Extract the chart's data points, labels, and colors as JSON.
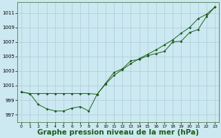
{
  "background_color": "#cce8f0",
  "grid_color": "#aaccd8",
  "line_color": "#1a5c1a",
  "xlabel": "Graphe pression niveau de la mer (hPa)",
  "xlabel_fontsize": 7.5,
  "ylabel_ticks": [
    997,
    999,
    1001,
    1003,
    1005,
    1007,
    1009,
    1011
  ],
  "xlim": [
    -0.5,
    23.5
  ],
  "ylim": [
    996.0,
    1012.5
  ],
  "xticks": [
    0,
    1,
    2,
    3,
    4,
    5,
    6,
    7,
    8,
    9,
    10,
    11,
    12,
    13,
    14,
    15,
    16,
    17,
    18,
    19,
    20,
    21,
    22,
    23
  ],
  "line1_x": [
    0,
    1,
    2,
    3,
    4,
    5,
    6,
    7,
    8,
    9,
    10,
    11,
    12,
    13,
    14,
    15,
    16,
    17,
    18,
    19,
    20,
    21,
    22,
    23
  ],
  "line1_y": [
    1000.1,
    999.9,
    998.4,
    997.8,
    997.5,
    997.5,
    997.9,
    998.1,
    997.5,
    999.8,
    1001.3,
    1002.8,
    1003.3,
    1004.4,
    1004.6,
    1005.1,
    1005.4,
    1005.7,
    1007.0,
    1007.1,
    1008.3,
    1008.7,
    1010.5,
    1011.8
  ],
  "line2_x": [
    0,
    1,
    2,
    3,
    4,
    5,
    6,
    7,
    8,
    9,
    10,
    11,
    12,
    13,
    14,
    15,
    16,
    17,
    18,
    19,
    20,
    21,
    22,
    23
  ],
  "line2_y": [
    1000.1,
    999.9,
    999.9,
    999.9,
    999.9,
    999.9,
    999.9,
    999.9,
    999.9,
    999.8,
    1001.2,
    1002.4,
    1003.2,
    1004.0,
    1004.7,
    1005.3,
    1005.9,
    1006.6,
    1007.3,
    1008.2,
    1009.0,
    1010.2,
    1010.8,
    1011.8
  ]
}
